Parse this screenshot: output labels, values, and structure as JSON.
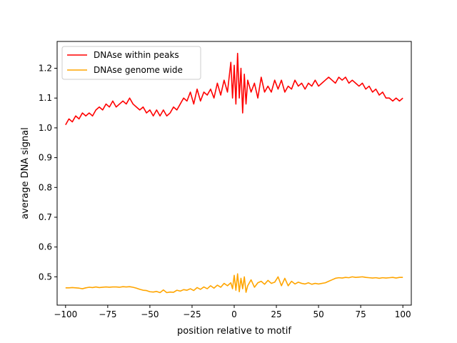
{
  "chart_data": {
    "type": "line",
    "title": "",
    "xlabel": "position relative to motif",
    "ylabel": "average DNA signal",
    "xlim": [
      -105,
      105
    ],
    "ylim": [
      0.405,
      1.29
    ],
    "xticks": [
      -100,
      -75,
      -50,
      -25,
      0,
      25,
      50,
      75,
      100
    ],
    "xtick_labels": [
      "−100",
      "−75",
      "−50",
      "−25",
      "0",
      "25",
      "50",
      "75",
      "100"
    ],
    "yticks": [
      0.5,
      0.6,
      0.7,
      0.8,
      0.9,
      1.0,
      1.1,
      1.2
    ],
    "ytick_labels": [
      "0.5",
      "0.6",
      "0.7",
      "0.8",
      "0.9",
      "1.0",
      "1.1",
      "1.2"
    ],
    "grid": false,
    "legend_position": "upper-left",
    "series": [
      {
        "name": "DNAse within peaks",
        "color": "#ff0000",
        "x": [
          -100,
          -98,
          -96,
          -94,
          -92,
          -90,
          -88,
          -86,
          -84,
          -82,
          -80,
          -78,
          -76,
          -74,
          -72,
          -70,
          -68,
          -66,
          -64,
          -62,
          -60,
          -58,
          -56,
          -54,
          -52,
          -50,
          -48,
          -46,
          -44,
          -42,
          -40,
          -38,
          -36,
          -34,
          -32,
          -30,
          -28,
          -26,
          -24,
          -22,
          -20,
          -18,
          -16,
          -14,
          -12,
          -10,
          -8,
          -6,
          -4,
          -2,
          -1,
          0,
          1,
          2,
          3,
          4,
          5,
          6,
          7,
          8,
          10,
          12,
          14,
          16,
          18,
          20,
          22,
          24,
          26,
          28,
          30,
          32,
          34,
          36,
          38,
          40,
          42,
          44,
          46,
          48,
          50,
          52,
          54,
          56,
          58,
          60,
          62,
          64,
          66,
          68,
          70,
          72,
          74,
          76,
          78,
          80,
          82,
          84,
          86,
          88,
          90,
          92,
          94,
          96,
          98,
          100
        ],
        "y": [
          1.01,
          1.03,
          1.02,
          1.04,
          1.03,
          1.05,
          1.04,
          1.05,
          1.04,
          1.06,
          1.07,
          1.06,
          1.08,
          1.07,
          1.09,
          1.07,
          1.08,
          1.09,
          1.08,
          1.1,
          1.08,
          1.07,
          1.06,
          1.07,
          1.05,
          1.06,
          1.04,
          1.06,
          1.04,
          1.06,
          1.04,
          1.05,
          1.07,
          1.06,
          1.08,
          1.1,
          1.09,
          1.12,
          1.08,
          1.13,
          1.09,
          1.12,
          1.11,
          1.13,
          1.1,
          1.15,
          1.11,
          1.16,
          1.12,
          1.22,
          1.1,
          1.21,
          1.08,
          1.25,
          1.1,
          1.2,
          1.05,
          1.18,
          1.08,
          1.16,
          1.12,
          1.15,
          1.1,
          1.17,
          1.12,
          1.14,
          1.12,
          1.16,
          1.13,
          1.16,
          1.12,
          1.14,
          1.13,
          1.16,
          1.14,
          1.15,
          1.13,
          1.15,
          1.14,
          1.16,
          1.14,
          1.15,
          1.16,
          1.17,
          1.16,
          1.15,
          1.17,
          1.16,
          1.17,
          1.15,
          1.16,
          1.15,
          1.14,
          1.15,
          1.13,
          1.14,
          1.12,
          1.13,
          1.11,
          1.12,
          1.1,
          1.1,
          1.09,
          1.1,
          1.09,
          1.1
        ]
      },
      {
        "name": "DNAse genome wide",
        "color": "#ffa500",
        "x": [
          -100,
          -98,
          -96,
          -94,
          -92,
          -90,
          -88,
          -86,
          -84,
          -82,
          -80,
          -78,
          -76,
          -74,
          -72,
          -70,
          -68,
          -66,
          -64,
          -62,
          -60,
          -58,
          -56,
          -54,
          -52,
          -50,
          -48,
          -46,
          -44,
          -42,
          -40,
          -38,
          -36,
          -34,
          -32,
          -30,
          -28,
          -26,
          -24,
          -22,
          -20,
          -18,
          -16,
          -14,
          -12,
          -10,
          -8,
          -6,
          -4,
          -2,
          -1,
          0,
          1,
          2,
          3,
          4,
          5,
          6,
          7,
          8,
          10,
          12,
          14,
          16,
          18,
          20,
          22,
          24,
          26,
          28,
          30,
          32,
          34,
          36,
          38,
          40,
          42,
          44,
          46,
          48,
          50,
          52,
          54,
          56,
          58,
          60,
          62,
          64,
          66,
          68,
          70,
          72,
          74,
          76,
          78,
          80,
          82,
          84,
          86,
          88,
          90,
          92,
          94,
          96,
          98,
          100
        ],
        "y": [
          0.463,
          0.463,
          0.464,
          0.463,
          0.462,
          0.46,
          0.463,
          0.465,
          0.464,
          0.466,
          0.464,
          0.465,
          0.466,
          0.465,
          0.466,
          0.466,
          0.465,
          0.467,
          0.466,
          0.467,
          0.465,
          0.462,
          0.458,
          0.455,
          0.454,
          0.45,
          0.449,
          0.451,
          0.447,
          0.456,
          0.447,
          0.449,
          0.448,
          0.455,
          0.452,
          0.457,
          0.455,
          0.46,
          0.454,
          0.464,
          0.458,
          0.466,
          0.46,
          0.47,
          0.462,
          0.472,
          0.465,
          0.478,
          0.47,
          0.48,
          0.46,
          0.505,
          0.455,
          0.51,
          0.45,
          0.495,
          0.46,
          0.5,
          0.448,
          0.47,
          0.49,
          0.465,
          0.48,
          0.485,
          0.475,
          0.488,
          0.478,
          0.482,
          0.5,
          0.47,
          0.495,
          0.47,
          0.485,
          0.476,
          0.482,
          0.478,
          0.476,
          0.48,
          0.475,
          0.478,
          0.476,
          0.478,
          0.48,
          0.485,
          0.49,
          0.495,
          0.497,
          0.496,
          0.498,
          0.497,
          0.5,
          0.498,
          0.499,
          0.5,
          0.498,
          0.497,
          0.496,
          0.497,
          0.495,
          0.497,
          0.496,
          0.497,
          0.498,
          0.496,
          0.498,
          0.498
        ]
      }
    ]
  }
}
